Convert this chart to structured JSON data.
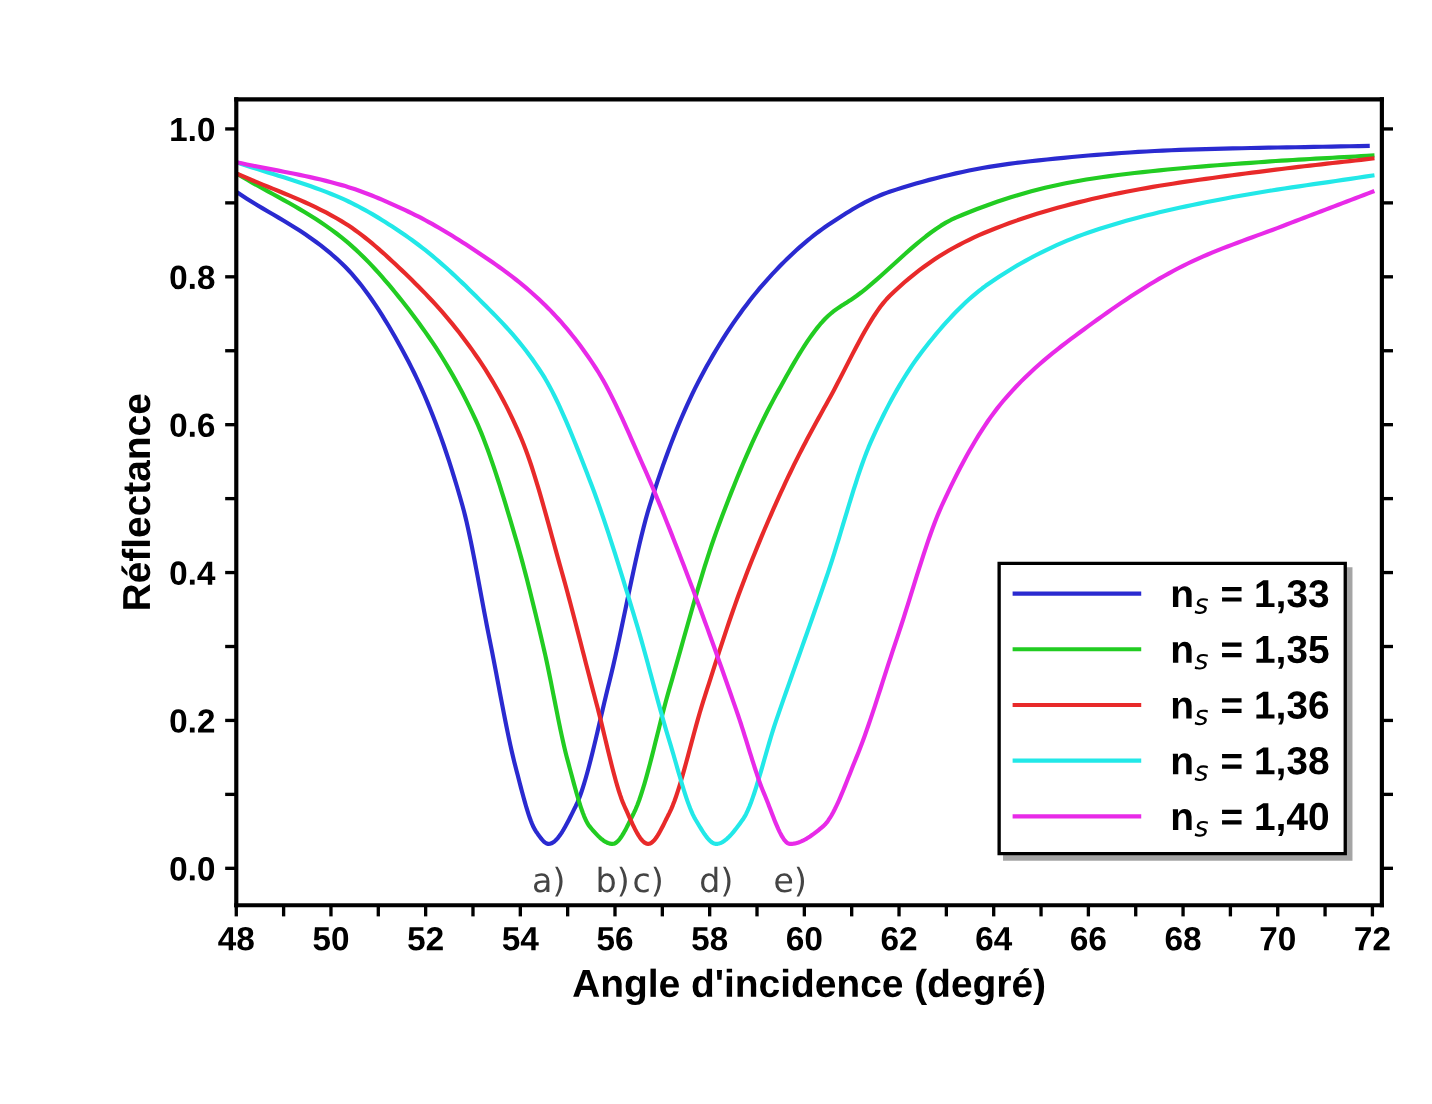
{
  "chart_data": {
    "type": "line",
    "xlabel": "Angle d'incidence (degré)",
    "ylabel": "Réflectance",
    "xlim": [
      48,
      72.2
    ],
    "ylim": [
      -0.05,
      1.04
    ],
    "xticks": [
      48,
      {
        "value": 49,
        "label": null
      },
      50,
      {
        "value": 51,
        "label": null
      },
      52,
      {
        "value": 53,
        "label": null
      },
      54,
      {
        "value": 55,
        "label": null
      },
      56,
      {
        "value": 57,
        "label": null
      },
      58,
      {
        "value": 59,
        "label": null
      },
      60,
      {
        "value": 61,
        "label": null
      },
      62,
      {
        "value": 63,
        "label": null
      },
      64,
      {
        "value": 65,
        "label": null
      },
      66,
      {
        "value": 67,
        "label": null
      },
      68,
      {
        "value": 69,
        "label": null
      },
      70,
      {
        "value": 71,
        "label": null
      },
      72
    ],
    "yticks": [
      {
        "value": 0,
        "label": "0.0"
      },
      {
        "value": 0.1,
        "label": null
      },
      0.2,
      {
        "value": 0.3,
        "label": null
      },
      0.4,
      {
        "value": 0.5,
        "label": null
      },
      0.6,
      {
        "value": 0.7,
        "label": null
      },
      0.8,
      {
        "value": 0.9,
        "label": null
      },
      {
        "value": 1,
        "label": "1.0"
      }
    ],
    "grid": false,
    "legend": "bottom right",
    "marker": "none",
    "line_style": "solid",
    "series": [
      {
        "name": "n$_{s}$ = 1,33",
        "color": "#2a2ad0",
        "x": [
          48,
          50.23,
          51.64,
          52.78,
          53.35,
          53.9,
          54.33,
          54.6,
          55.17,
          55.88,
          56.73,
          57.86,
          59.27,
          60.5,
          61.8,
          64.6,
          68.1,
          71.9
        ],
        "values": [
          0.915,
          0.818,
          0.685,
          0.49,
          0.31,
          0.137,
          0.05,
          0.033,
          0.084,
          0.252,
          0.49,
          0.67,
          0.8,
          0.87,
          0.915,
          0.955,
          0.972,
          0.977
        ]
      },
      {
        "name": "n$_{s}$ = 1,35",
        "color": "#22cc22",
        "x": [
          48,
          50.23,
          51.64,
          53.06,
          53.9,
          54.5,
          55.0,
          55.46,
          55.95,
          56.4,
          57.15,
          58.14,
          59.4,
          60.5,
          61.1,
          63.2,
          66.1,
          69.6,
          72
        ],
        "values": [
          0.94,
          0.853,
          0.756,
          0.606,
          0.447,
          0.296,
          0.146,
          0.057,
          0.033,
          0.075,
          0.243,
          0.455,
          0.64,
          0.747,
          0.774,
          0.88,
          0.933,
          0.955,
          0.964
        ]
      },
      {
        "name": "n$_{s}$ = 1,36",
        "color": "#e82a2a",
        "x": [
          48,
          50.23,
          51.64,
          53.06,
          54.03,
          54.88,
          55.6,
          56.2,
          56.7,
          57.15,
          57.86,
          58.7,
          59.7,
          60.5,
          61.8,
          63.9,
          66.8,
          69.6,
          72
        ],
        "values": [
          0.94,
          0.875,
          0.8,
          0.694,
          0.58,
          0.4,
          0.225,
          0.084,
          0.033,
          0.075,
          0.225,
          0.385,
          0.535,
          0.632,
          0.774,
          0.862,
          0.915,
          0.942,
          0.96
        ]
      },
      {
        "name": "n$_{s}$ = 1,38",
        "color": "#22e8e8",
        "x": [
          48,
          50.23,
          51.64,
          53.06,
          54.47,
          55.46,
          56.45,
          57.15,
          57.7,
          58.14,
          58.7,
          59.4,
          60.5,
          61.4,
          62.5,
          63.9,
          66.1,
          68.9,
          72
        ],
        "values": [
          0.955,
          0.906,
          0.853,
          0.774,
          0.668,
          0.526,
          0.332,
          0.172,
          0.066,
          0.033,
          0.066,
          0.199,
          0.4,
          0.576,
          0.7,
          0.791,
          0.862,
          0.906,
          0.937
        ]
      },
      {
        "name": "n$_{s}$ = 1,40",
        "color": "#e82ae8",
        "x": [
          48,
          50.23,
          51.64,
          53.06,
          54.47,
          55.6,
          56.6,
          57.6,
          58.6,
          59.15,
          59.7,
          60.4,
          61.1,
          61.95,
          62.9,
          64.2,
          66.1,
          68.1,
          70.2,
          72
        ],
        "values": [
          0.955,
          0.924,
          0.888,
          0.835,
          0.765,
          0.676,
          0.544,
          0.385,
          0.207,
          0.101,
          0.033,
          0.057,
          0.15,
          0.31,
          0.49,
          0.632,
          0.738,
          0.818,
          0.871,
          0.915
        ]
      }
    ],
    "annotations": [
      {
        "text": "a)",
        "x": 54.6,
        "y": 0.033
      },
      {
        "text": "b)",
        "x": 55.95,
        "y": 0.033
      },
      {
        "text": "c)",
        "x": 56.7,
        "y": 0.033
      },
      {
        "text": "d)",
        "x": 58.14,
        "y": 0.033
      },
      {
        "text": "e)",
        "x": 59.7,
        "y": 0.033
      }
    ]
  }
}
